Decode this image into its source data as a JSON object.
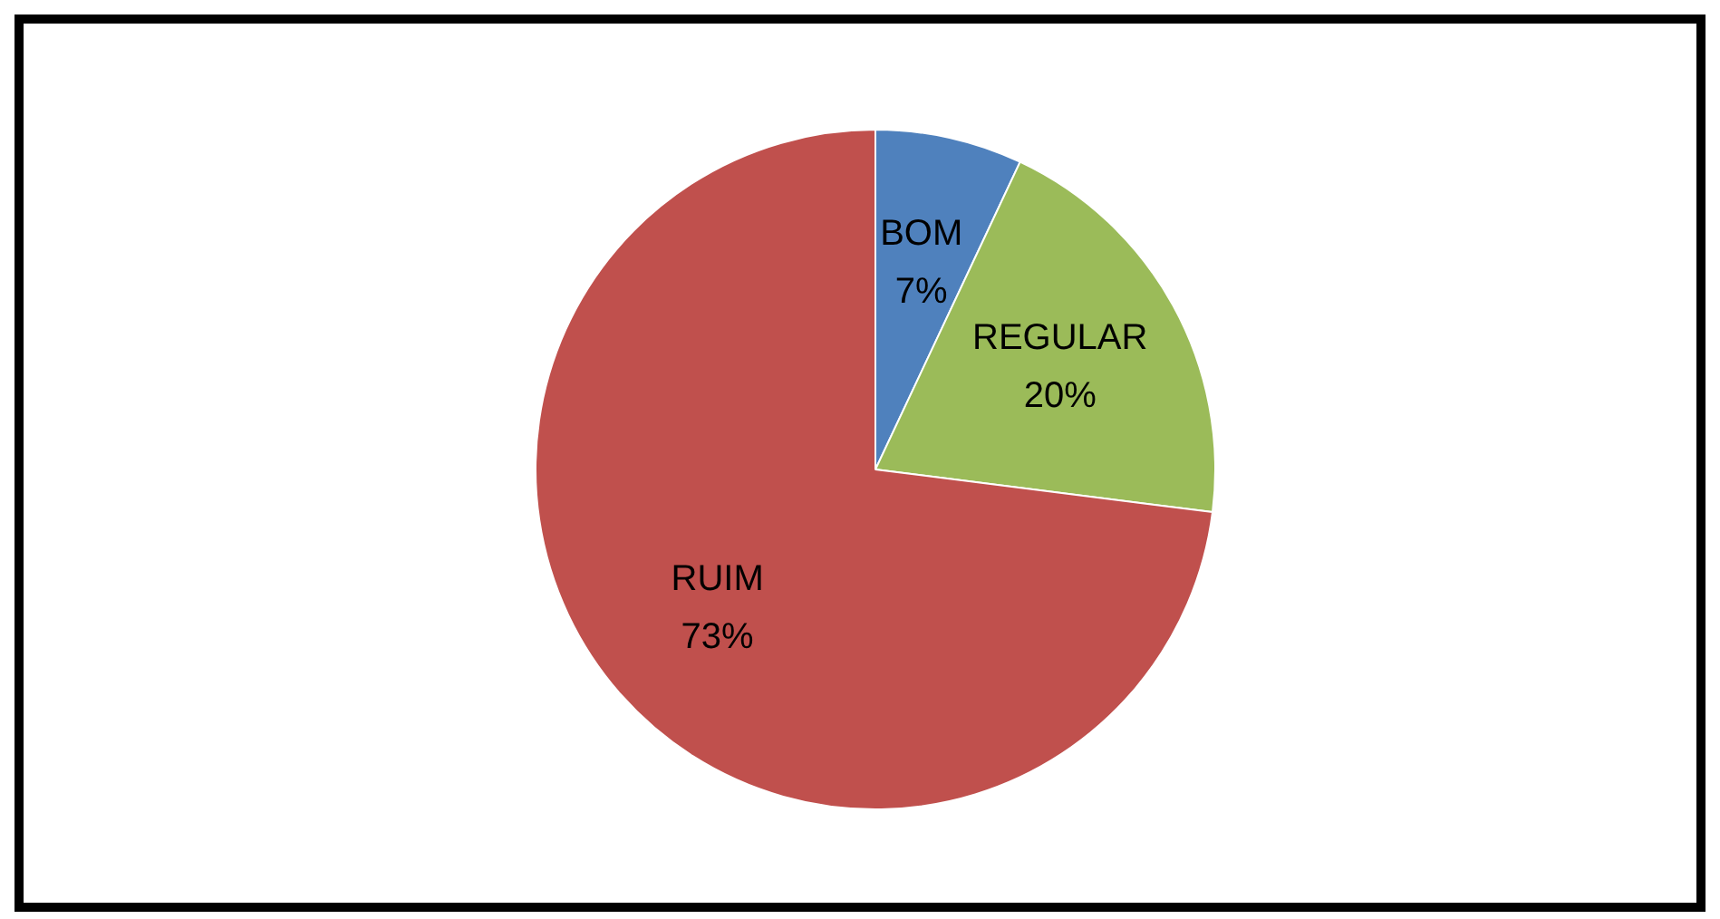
{
  "chart_data": {
    "type": "pie",
    "categories": [
      "BOM",
      "REGULAR",
      "RUIM"
    ],
    "values": [
      7,
      20,
      73
    ],
    "value_labels": [
      "7%",
      "20%",
      "73%"
    ],
    "colors": [
      "#4f81bd",
      "#9bbb59",
      "#c0504d"
    ]
  }
}
